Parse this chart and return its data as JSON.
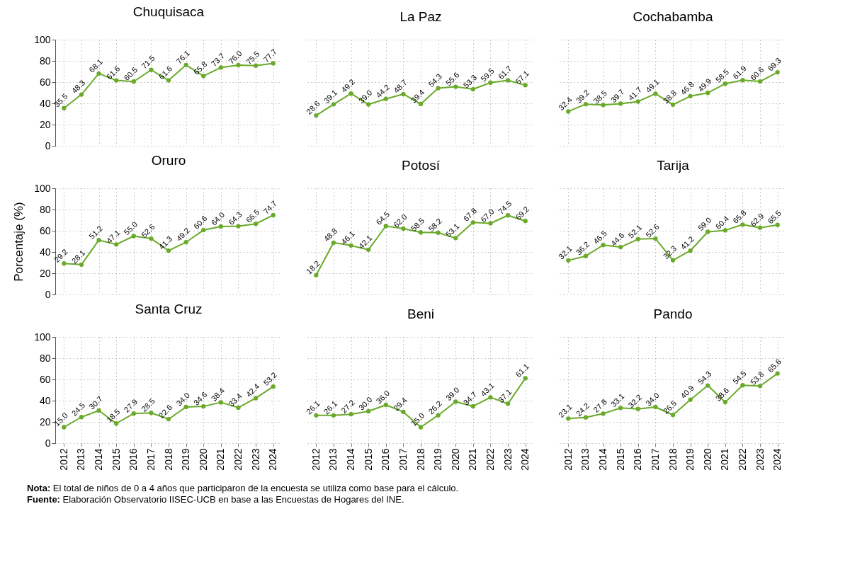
{
  "chart_data": [
    {
      "type": "line",
      "title": "Chuquisaca",
      "categories": [
        "2012",
        "2013",
        "2014",
        "2015",
        "2016",
        "2017",
        "2018",
        "2019",
        "2020",
        "2021",
        "2022",
        "2023",
        "2024"
      ],
      "values": [
        35.5,
        48.3,
        68.1,
        61.6,
        60.5,
        71.5,
        61.6,
        76.1,
        65.8,
        73.7,
        76.0,
        75.5,
        77.7
      ],
      "value_labels": [
        "35.5",
        "48.3",
        "68.1",
        "61.6",
        "60.5",
        "71.5",
        "61.6",
        "76.1",
        "65.8",
        "73.7",
        "76.0",
        "75.5",
        "77.7"
      ],
      "color": "#6aaa2a",
      "ylim": [
        0,
        100
      ],
      "yticks": [
        0,
        20,
        40,
        60,
        80,
        100
      ],
      "grid": true,
      "marker": "circle",
      "tick_labels": "y"
    },
    {
      "type": "line",
      "title": "La Paz",
      "categories": [
        "2012",
        "2013",
        "2014",
        "2015",
        "2016",
        "2017",
        "2018",
        "2019",
        "2020",
        "2021",
        "2022",
        "2023",
        "2024"
      ],
      "values": [
        28.6,
        39.1,
        49.2,
        39.0,
        44.2,
        48.7,
        39.4,
        54.3,
        55.6,
        53.3,
        59.5,
        61.7,
        57.1
      ],
      "value_labels": [
        "28.6",
        "39.1",
        "49.2",
        "39.0",
        "44.2",
        "48.7",
        "39.4",
        "54.3",
        "55.6",
        "53.3",
        "59.5",
        "61.7",
        "57.1"
      ],
      "color": "#6aaa2a",
      "ylim": [
        0,
        100
      ],
      "yticks": [
        0,
        20,
        40,
        60,
        80,
        100
      ],
      "grid": true,
      "marker": "circle",
      "tick_labels": false
    },
    {
      "type": "line",
      "title": "Cochabamba",
      "categories": [
        "2012",
        "2013",
        "2014",
        "2015",
        "2016",
        "2017",
        "2018",
        "2019",
        "2020",
        "2021",
        "2022",
        "2023",
        "2024"
      ],
      "values": [
        32.4,
        39.2,
        38.5,
        39.7,
        41.7,
        49.1,
        38.8,
        46.8,
        49.9,
        58.5,
        61.9,
        60.6,
        69.3
      ],
      "value_labels": [
        "32.4",
        "39.2",
        "38.5",
        "39.7",
        "41.7",
        "49.1",
        "38.8",
        "46.8",
        "49.9",
        "58.5",
        "61.9",
        "60.6",
        "69.3"
      ],
      "color": "#6aaa2a",
      "ylim": [
        0,
        100
      ],
      "yticks": [
        0,
        20,
        40,
        60,
        80,
        100
      ],
      "grid": true,
      "marker": "circle",
      "tick_labels": false
    },
    {
      "type": "line",
      "title": "Oruro",
      "ylabel": "Porcentaje (%)",
      "categories": [
        "2012",
        "2013",
        "2014",
        "2015",
        "2016",
        "2017",
        "2018",
        "2019",
        "2020",
        "2021",
        "2022",
        "2023",
        "2024"
      ],
      "values": [
        29.2,
        28.1,
        51.2,
        47.1,
        55.0,
        52.6,
        41.3,
        49.2,
        60.6,
        64.0,
        64.3,
        66.5,
        74.7
      ],
      "value_labels": [
        "29.2",
        "28.1",
        "51.2",
        "47.1",
        "55.0",
        "52.6",
        "41.3",
        "49.2",
        "60.6",
        "64.0",
        "64.3",
        "66.5",
        "74.7"
      ],
      "color": "#6aaa2a",
      "ylim": [
        0,
        100
      ],
      "yticks": [
        0,
        20,
        40,
        60,
        80,
        100
      ],
      "grid": true,
      "marker": "circle",
      "tick_labels": "y"
    },
    {
      "type": "line",
      "title": "Potosí",
      "categories": [
        "2012",
        "2013",
        "2014",
        "2015",
        "2016",
        "2017",
        "2018",
        "2019",
        "2020",
        "2021",
        "2022",
        "2023",
        "2024"
      ],
      "values": [
        18.2,
        48.8,
        46.1,
        42.1,
        64.5,
        62.0,
        58.5,
        58.2,
        53.1,
        67.8,
        67.0,
        74.5,
        69.2
      ],
      "value_labels": [
        "18.2",
        "48.8",
        "46.1",
        "42.1",
        "64.5",
        "62.0",
        "58.5",
        "58.2",
        "53.1",
        "67.8",
        "67.0",
        "74.5",
        "69.2"
      ],
      "color": "#6aaa2a",
      "ylim": [
        0,
        100
      ],
      "yticks": [
        0,
        20,
        40,
        60,
        80,
        100
      ],
      "grid": true,
      "marker": "circle",
      "tick_labels": false
    },
    {
      "type": "line",
      "title": "Tarija",
      "categories": [
        "2012",
        "2013",
        "2014",
        "2015",
        "2016",
        "2017",
        "2018",
        "2019",
        "2020",
        "2021",
        "2022",
        "2023",
        "2024"
      ],
      "values": [
        32.1,
        36.2,
        46.5,
        44.6,
        52.1,
        52.6,
        32.3,
        41.2,
        59.0,
        60.4,
        65.8,
        62.9,
        65.5
      ],
      "value_labels": [
        "32.1",
        "36.2",
        "46.5",
        "44.6",
        "52.1",
        "52.6",
        "32.3",
        "41.2",
        "59.0",
        "60.4",
        "65.8",
        "62.9",
        "65.5"
      ],
      "color": "#6aaa2a",
      "ylim": [
        0,
        100
      ],
      "yticks": [
        0,
        20,
        40,
        60,
        80,
        100
      ],
      "grid": true,
      "marker": "circle",
      "tick_labels": false
    },
    {
      "type": "line",
      "title": "Santa Cruz",
      "categories": [
        "2012",
        "2013",
        "2014",
        "2015",
        "2016",
        "2017",
        "2018",
        "2019",
        "2020",
        "2021",
        "2022",
        "2023",
        "2024"
      ],
      "values": [
        15.0,
        24.5,
        30.7,
        18.5,
        27.9,
        28.5,
        22.6,
        34.0,
        34.6,
        38.4,
        33.4,
        42.4,
        53.2
      ],
      "value_labels": [
        "15.0",
        "24.5",
        "30.7",
        "18.5",
        "27.9",
        "28.5",
        "22.6",
        "34.0",
        "34.6",
        "38.4",
        "33.4",
        "42.4",
        "53.2"
      ],
      "color": "#6aaa2a",
      "ylim": [
        0,
        100
      ],
      "yticks": [
        0,
        20,
        40,
        60,
        80,
        100
      ],
      "grid": true,
      "marker": "circle"
    },
    {
      "type": "line",
      "title": "Beni",
      "categories": [
        "2012",
        "2013",
        "2014",
        "2015",
        "2016",
        "2017",
        "2018",
        "2019",
        "2020",
        "2021",
        "2022",
        "2023",
        "2024"
      ],
      "values": [
        26.1,
        26.1,
        27.2,
        30.0,
        36.0,
        29.4,
        15.0,
        26.2,
        39.0,
        34.7,
        43.1,
        37.1,
        61.1
      ],
      "value_labels": [
        "26.1",
        "26.1",
        "27.2",
        "30.0",
        "36.0",
        "29.4",
        "15.0",
        "26.2",
        "39.0",
        "34.7",
        "43.1",
        "37.1",
        "61.1"
      ],
      "color": "#6aaa2a",
      "ylim": [
        0,
        100
      ],
      "yticks": [
        0,
        20,
        40,
        60,
        80,
        100
      ],
      "grid": true,
      "marker": "circle",
      "tick_labels": "x"
    },
    {
      "type": "line",
      "title": "Pando",
      "categories": [
        "2012",
        "2013",
        "2014",
        "2015",
        "2016",
        "2017",
        "2018",
        "2019",
        "2020",
        "2021",
        "2022",
        "2023",
        "2024"
      ],
      "values": [
        23.1,
        24.2,
        27.8,
        33.1,
        32.2,
        34.0,
        26.5,
        40.9,
        54.3,
        38.6,
        54.5,
        53.8,
        65.6
      ],
      "value_labels": [
        "23.1",
        "24.2",
        "27.8",
        "33.1",
        "32.2",
        "34.0",
        "26.5",
        "40.9",
        "54.3",
        "38.6",
        "54.5",
        "53.8",
        "65.6"
      ],
      "color": "#6aaa2a",
      "ylim": [
        0,
        100
      ],
      "yticks": [
        0,
        20,
        40,
        60,
        80,
        100
      ],
      "grid": true,
      "marker": "circle",
      "tick_labels": "x",
      "annotations": [
        "Nota: El total de niños de 0 a 4 años que participaron de la encuesta se utiliza como base para el cálculo.",
        "Fuente: Elaboración Observatorio IISEC-UCB en base a las Encuestas de Hogares del INE."
      ]
    }
  ]
}
